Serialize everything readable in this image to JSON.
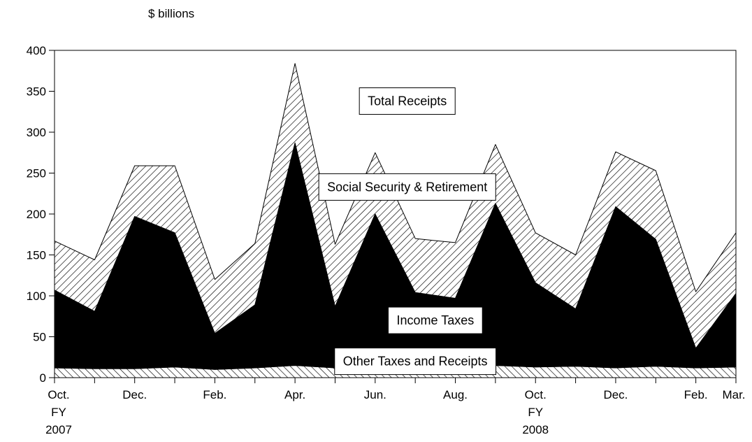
{
  "chart_data": {
    "type": "area",
    "unit_label": "$ billions",
    "ylim": [
      0,
      400
    ],
    "y_ticks": [
      0,
      50,
      100,
      150,
      200,
      250,
      300,
      350,
      400
    ],
    "months": [
      "Oct 2006",
      "Nov 2006",
      "Dec 2006",
      "Jan 2007",
      "Feb 2007",
      "Mar 2007",
      "Apr 2007",
      "May 2007",
      "Jun 2007",
      "Jul 2007",
      "Aug 2007",
      "Sep 2007",
      "Oct 2007",
      "Nov 2007",
      "Dec 2007",
      "Jan 2008",
      "Feb 2008",
      "Mar 2008"
    ],
    "x_tick_labels": [
      {
        "i": 0,
        "lines": [
          "Oct.",
          "FY",
          "2007"
        ]
      },
      {
        "i": 2,
        "lines": [
          "Dec."
        ]
      },
      {
        "i": 4,
        "lines": [
          "Feb."
        ]
      },
      {
        "i": 6,
        "lines": [
          "Apr."
        ]
      },
      {
        "i": 8,
        "lines": [
          "Jun."
        ]
      },
      {
        "i": 10,
        "lines": [
          "Aug."
        ]
      },
      {
        "i": 12,
        "lines": [
          "Oct.",
          "FY",
          "2008"
        ]
      },
      {
        "i": 14,
        "lines": [
          "Dec."
        ]
      },
      {
        "i": 16,
        "lines": [
          "Feb."
        ]
      },
      {
        "i": 17,
        "lines": [
          "Mar."
        ]
      }
    ],
    "series": [
      {
        "name": "Other Taxes and Receipts",
        "values": [
          12,
          11,
          11,
          13,
          10,
          12,
          15,
          12,
          13,
          14,
          12,
          15,
          13,
          14,
          12,
          14,
          12,
          13
        ],
        "color": "#ffffff",
        "pattern": "hatch-up"
      },
      {
        "name": "Income Taxes",
        "values": [
          95,
          70,
          186,
          164,
          44,
          77,
          272,
          75,
          187,
          90,
          85,
          198,
          103,
          70,
          197,
          155,
          24,
          90
        ],
        "color": "#000000",
        "pattern": "solid"
      },
      {
        "name": "Social Security & Retirement",
        "values": [
          60,
          63,
          62,
          82,
          66,
          75,
          97,
          76,
          75,
          66,
          68,
          72,
          61,
          66,
          67,
          84,
          69,
          74
        ],
        "color": "#ffffff",
        "pattern": "hatch-down"
      }
    ],
    "annotations": [
      {
        "text": "Total Receipts",
        "x": 8.8,
        "y": 338
      },
      {
        "text": "Social Security & Retirement",
        "x": 8.8,
        "y": 233
      },
      {
        "text": "Income Taxes",
        "x": 9.5,
        "y": 70
      },
      {
        "text": "Other Taxes and Receipts",
        "x": 9.0,
        "y": 20
      }
    ]
  }
}
